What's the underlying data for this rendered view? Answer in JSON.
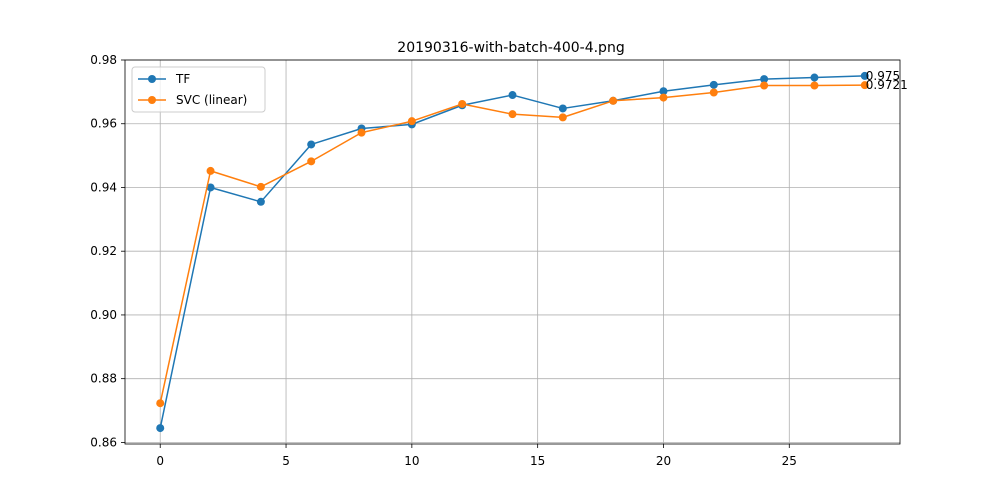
{
  "chart_data": {
    "type": "line",
    "title": "20190316-with-batch-400-4.png",
    "xlabel": "",
    "ylabel": "",
    "xlim": [
      -1.4,
      29.4
    ],
    "ylim": [
      0.8595,
      0.98
    ],
    "x_ticks": [
      0,
      5,
      10,
      15,
      20,
      25
    ],
    "x_tick_labels": [
      "0",
      "5",
      "10",
      "15",
      "20",
      "25"
    ],
    "y_ticks": [
      0.86,
      0.88,
      0.9,
      0.92,
      0.94,
      0.96,
      0.98
    ],
    "y_tick_labels": [
      "0.86",
      "0.88",
      "0.90",
      "0.92",
      "0.94",
      "0.96",
      "0.98"
    ],
    "grid": true,
    "legend_position": "top-left",
    "x": [
      0,
      2,
      4,
      6,
      8,
      10,
      12,
      14,
      16,
      18,
      20,
      22,
      24,
      26,
      28
    ],
    "series": [
      {
        "name": "TF",
        "color": "#1f77b4",
        "values": [
          0.8645,
          0.94,
          0.9355,
          0.9535,
          0.9585,
          0.9598,
          0.9658,
          0.969,
          0.9648,
          0.9672,
          0.9702,
          0.9722,
          0.974,
          0.9745,
          0.975
        ],
        "end_label": "0.975"
      },
      {
        "name": "SVC (linear)",
        "color": "#ff7f0e",
        "values": [
          0.8723,
          0.9452,
          0.9402,
          0.9482,
          0.9572,
          0.9608,
          0.9662,
          0.963,
          0.962,
          0.9672,
          0.9682,
          0.9698,
          0.972,
          0.972,
          0.9721
        ],
        "end_label": "0.9721"
      }
    ]
  }
}
